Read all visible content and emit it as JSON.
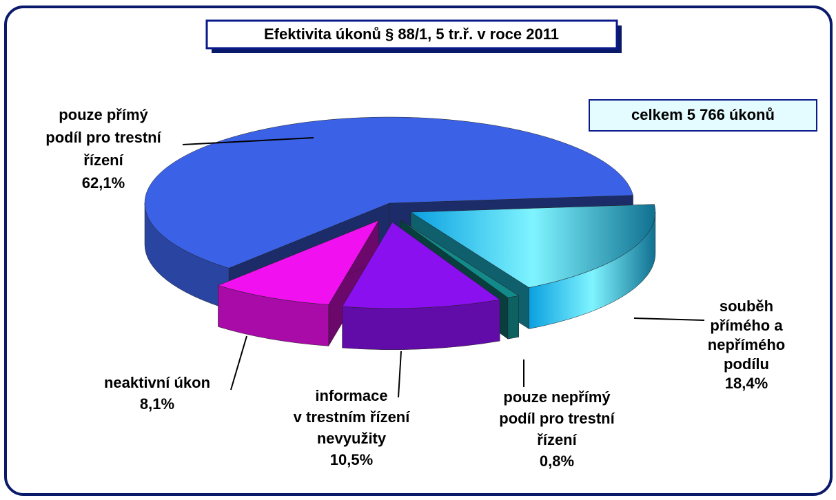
{
  "chart_data": {
    "type": "pie3d",
    "title": "Efektivita úkonů § 88/1, 5 tr.ř.  v roce 2011",
    "annotation": "celkem 5 766 úkonů",
    "categories": [
      "pouze přímý\npodíl pro trestní\nřízení",
      "souběh\npřímého a\nnepřímého\npodílu",
      "pouze nepřímý\npodíl pro trestní\nřízení",
      "informace\nv trestním řízení\nnevyužity",
      "neaktivní úkon"
    ],
    "values": [
      62.1,
      18.4,
      0.8,
      10.5,
      8.1
    ],
    "value_labels": [
      "62,1%",
      "18,4%",
      "0,8%",
      "10,5%",
      "8,1%"
    ],
    "colors": [
      "#3b62e6",
      "#22d4f2",
      "#138a8a",
      "#8a10f0",
      "#f010f0"
    ]
  }
}
